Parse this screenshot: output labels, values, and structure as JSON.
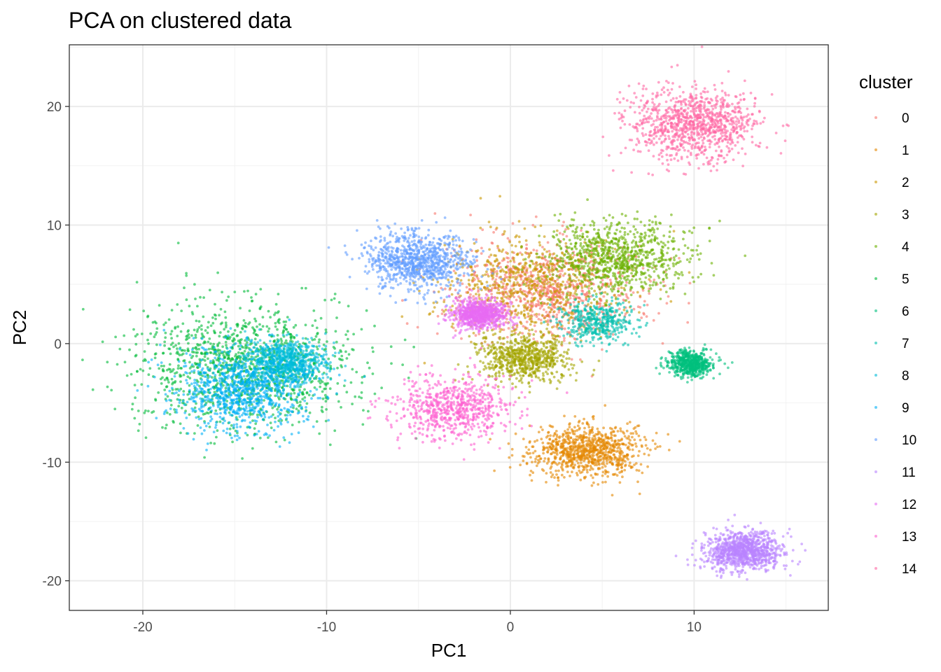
{
  "chart_data": {
    "type": "scatter",
    "title": "PCA on clustered data",
    "xlabel": "PC1",
    "ylabel": "PC2",
    "xlim": [
      -24,
      17.3
    ],
    "ylim": [
      -22.5,
      25.2
    ],
    "x_ticks": [
      -20,
      -10,
      0,
      10
    ],
    "y_ticks": [
      -20,
      -10,
      0,
      10,
      20
    ],
    "x_tick_labels": [
      "-20",
      "-10",
      "0",
      "10"
    ],
    "y_tick_labels": [
      "-20",
      "-10",
      "0",
      "10",
      "20"
    ],
    "grid": true,
    "legend_title": "cluster",
    "legend_position": "right",
    "point_alpha": 0.6,
    "series": [
      {
        "name": "0",
        "color": "#F8766D",
        "center": [
          2.0,
          4.5
        ],
        "sd": [
          2.6,
          2.0
        ],
        "n": 900
      },
      {
        "name": "1",
        "color": "#E58700",
        "center": [
          4.1,
          -9.0
        ],
        "sd": [
          1.5,
          1.1
        ],
        "n": 900
      },
      {
        "name": "2",
        "color": "#C99800",
        "center": [
          1.0,
          5.0
        ],
        "sd": [
          2.5,
          2.2
        ],
        "n": 700
      },
      {
        "name": "3",
        "color": "#A3A500",
        "center": [
          0.8,
          -1.2
        ],
        "sd": [
          1.2,
          1.0
        ],
        "n": 700
      },
      {
        "name": "4",
        "color": "#6BB100",
        "center": [
          5.8,
          7.3
        ],
        "sd": [
          1.9,
          1.5
        ],
        "n": 900
      },
      {
        "name": "5",
        "color": "#00BA38",
        "center": [
          -14.5,
          -2.0
        ],
        "sd": [
          3.0,
          2.6
        ],
        "n": 1300
      },
      {
        "name": "6",
        "color": "#00BF7D",
        "center": [
          9.8,
          -1.7
        ],
        "sd": [
          0.6,
          0.55
        ],
        "n": 600
      },
      {
        "name": "7",
        "color": "#00C0AF",
        "center": [
          4.8,
          1.8
        ],
        "sd": [
          1.0,
          0.9
        ],
        "n": 400
      },
      {
        "name": "8",
        "color": "#00BCD8",
        "center": [
          -12.2,
          -1.5
        ],
        "sd": [
          1.1,
          0.9
        ],
        "n": 700
      },
      {
        "name": "9",
        "color": "#00B0F6",
        "center": [
          -14.5,
          -4.0
        ],
        "sd": [
          1.8,
          1.7
        ],
        "n": 900
      },
      {
        "name": "10",
        "color": "#619CFF",
        "center": [
          -5.0,
          7.0
        ],
        "sd": [
          1.4,
          1.2
        ],
        "n": 900
      },
      {
        "name": "11",
        "color": "#B983FF",
        "center": [
          12.7,
          -17.5
        ],
        "sd": [
          1.0,
          0.8
        ],
        "n": 1000
      },
      {
        "name": "12",
        "color": "#E76BF3",
        "center": [
          -1.7,
          2.5
        ],
        "sd": [
          0.75,
          0.6
        ],
        "n": 800
      },
      {
        "name": "13",
        "color": "#FD61D1",
        "center": [
          -3.2,
          -5.5
        ],
        "sd": [
          1.6,
          1.3
        ],
        "n": 700
      },
      {
        "name": "14",
        "color": "#FF67A4",
        "center": [
          10.0,
          18.5
        ],
        "sd": [
          1.8,
          1.5
        ],
        "n": 1000
      }
    ]
  }
}
